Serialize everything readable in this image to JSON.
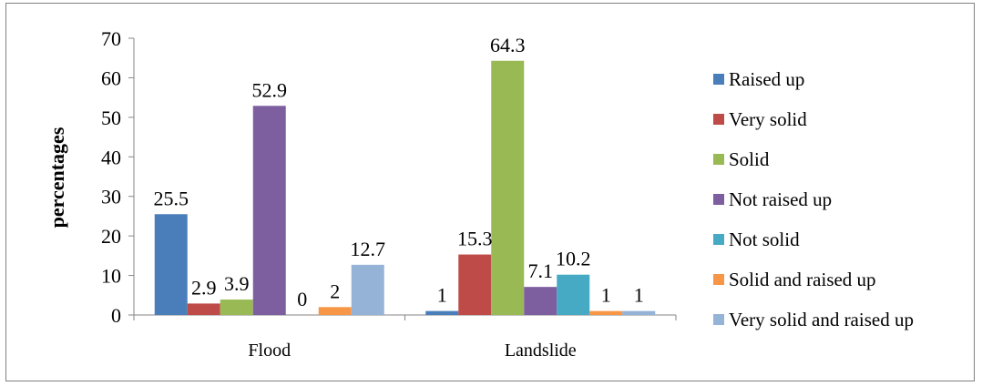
{
  "chart_data": {
    "type": "bar",
    "title": "",
    "xlabel": "",
    "ylabel": "percentages",
    "ylim": [
      0,
      70
    ],
    "yticks": [
      0,
      10,
      20,
      30,
      40,
      50,
      60,
      70
    ],
    "grid": false,
    "legend_position": "right",
    "categories": [
      "Flood",
      "Landslide"
    ],
    "series": [
      {
        "name": "Raised up",
        "color": "#4A7EBB",
        "values": [
          25.5,
          1
        ]
      },
      {
        "name": "Very solid",
        "color": "#BE4B48",
        "values": [
          2.9,
          15.3
        ]
      },
      {
        "name": "Solid",
        "color": "#98B954",
        "values": [
          3.9,
          64.3
        ]
      },
      {
        "name": "Not raised up",
        "color": "#7D5FA0",
        "values": [
          52.9,
          7.1
        ]
      },
      {
        "name": "Not solid",
        "color": "#46AAC5",
        "values": [
          0,
          10.2
        ]
      },
      {
        "name": "Solid and raised up",
        "color": "#F79646",
        "values": [
          2,
          1
        ]
      },
      {
        "name": "Very solid and raised up",
        "color": "#95B3D7",
        "values": [
          12.7,
          1
        ]
      }
    ]
  }
}
